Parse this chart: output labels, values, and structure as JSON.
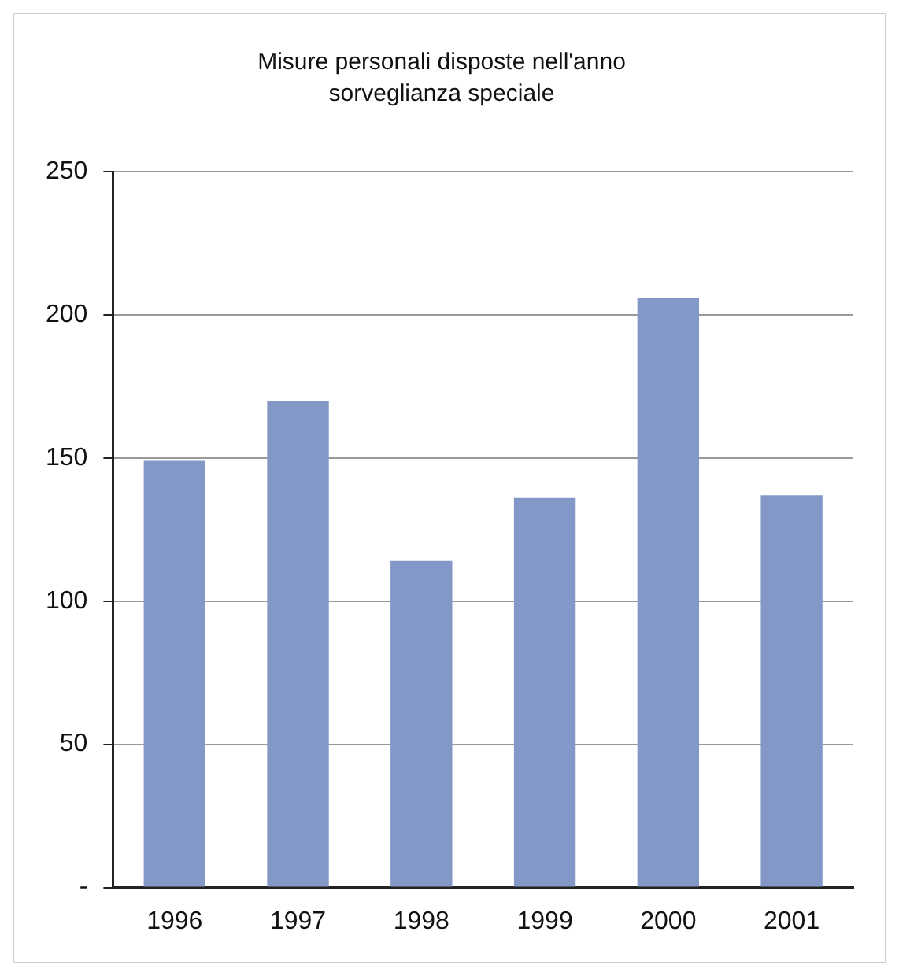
{
  "chart_data": {
    "type": "bar",
    "title": "Misure personali disposte nell'anno",
    "subtitle": "sorveglianza speciale",
    "categories": [
      "1996",
      "1997",
      "1998",
      "1999",
      "2000",
      "2001"
    ],
    "values": [
      149,
      170,
      114,
      136,
      206,
      137
    ],
    "color": "#8498c8",
    "ylim": [
      0,
      250
    ],
    "yticks": [
      {
        "value": 0,
        "label": "-"
      },
      50,
      100,
      150,
      200,
      250
    ],
    "grid": "y"
  }
}
